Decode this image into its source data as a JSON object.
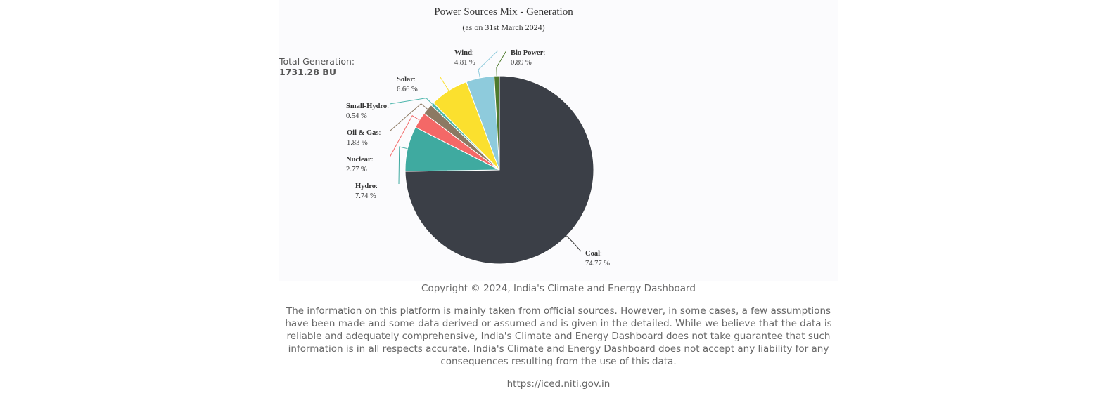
{
  "chart_data": {
    "type": "pie",
    "title": "Power Sources Mix - Generation",
    "subtitle": "(as on 31st March 2024)",
    "total_label": "Total Generation:",
    "total_value": "1731.28 BU",
    "slices": [
      {
        "name": "Coal",
        "value": 74.77,
        "label": "74.77 %",
        "color": "#3b3f47"
      },
      {
        "name": "Hydro",
        "value": 7.74,
        "label": "7.74 %",
        "color": "#3faaa0"
      },
      {
        "name": "Nuclear",
        "value": 2.77,
        "label": "2.77 %",
        "color": "#f46867"
      },
      {
        "name": "Oil & Gas",
        "value": 1.83,
        "label": "1.83 %",
        "color": "#8c7963"
      },
      {
        "name": "Small-Hydro",
        "value": 0.54,
        "label": "0.54 %",
        "color": "#4db6ac"
      },
      {
        "name": "Solar",
        "value": 6.66,
        "label": "6.66 %",
        "color": "#fbe02e"
      },
      {
        "name": "Wind",
        "value": 4.81,
        "label": "4.81 %",
        "color": "#8ecbdc"
      },
      {
        "name": "Bio Power",
        "value": 0.89,
        "label": "0.89 %",
        "color": "#4e7a2c"
      }
    ]
  },
  "footer": {
    "copyright": "Copyright © 2024, India's Climate and Energy Dashboard",
    "disclaimer": "The information on this platform is mainly taken from official sources. However, in some cases, a few assumptions have been made and some data derived or assumed and is given in the detailed. While we believe that the data is reliable and adequately comprehensive, India's Climate and Energy Dashboard does not take guarantee that such information is in all respects accurate. India's Climate and Energy Dashboard does not accept any liability for any consequences resulting from the use of this data.",
    "url": "https://iced.niti.gov.in"
  }
}
